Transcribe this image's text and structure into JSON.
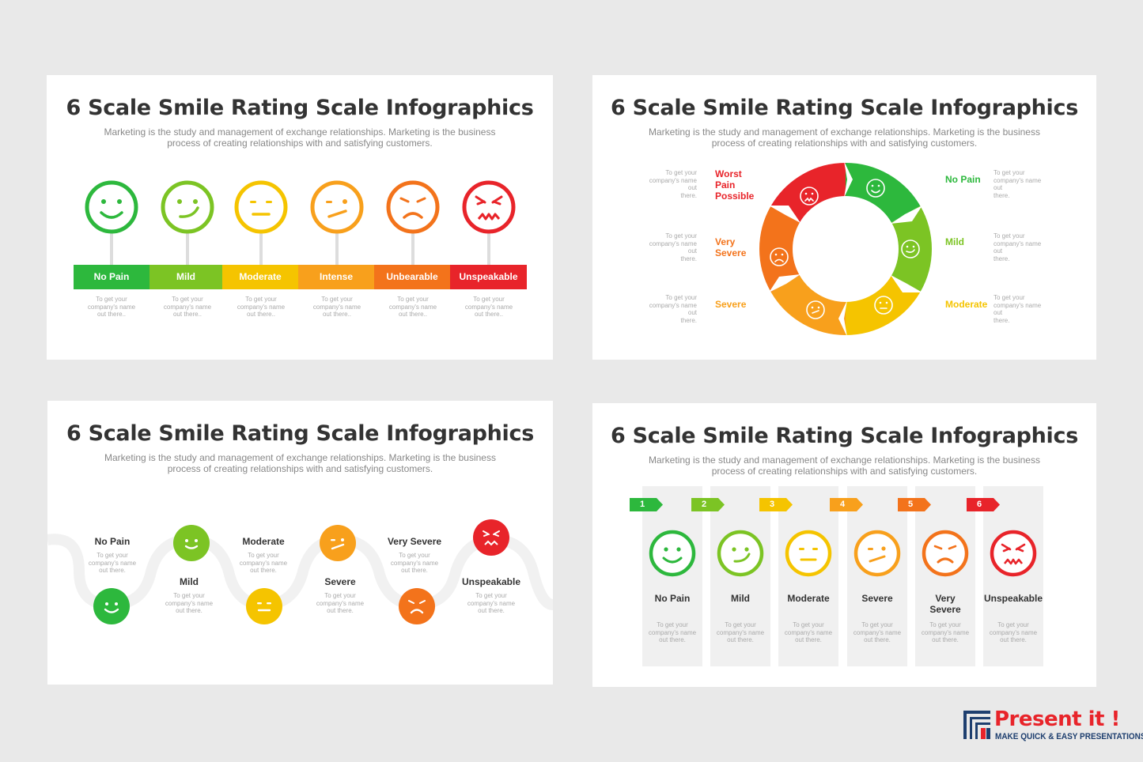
{
  "title": "6 Scale Smile Rating Scale Infographics",
  "subtitle_line1": "Marketing is the study and management of exchange relationships. Marketing is the business",
  "subtitle_line2": "process of creating relationships with and satisfying customers.",
  "colors": {
    "no_pain": "#2db83d",
    "mild": "#7cc424",
    "moderate": "#f5c400",
    "intense": "#f8a01c",
    "unbearable": "#f3731b",
    "unspeakable": "#e8242a",
    "bg": "#e9e9e9",
    "title": "#333333",
    "brand_red": "#e8242a",
    "brand_blue": "#1e3f6f"
  },
  "slide1": {
    "levels": [
      {
        "label": "No Pain",
        "note_line1": "To get your",
        "note_line2": "company's name",
        "note_line3": "out there..",
        "icon": "happy-face-icon"
      },
      {
        "label": "Mild",
        "note_line1": "To get your",
        "note_line2": "company's name",
        "note_line3": "out there..",
        "icon": "smirk-face-icon"
      },
      {
        "label": "Moderate",
        "note_line1": "To get your",
        "note_line2": "company's name",
        "note_line3": "out there..",
        "icon": "neutral-face-icon"
      },
      {
        "label": "Intense",
        "note_line1": "To get your",
        "note_line2": "company's name",
        "note_line3": "out there..",
        "icon": "uneasy-face-icon"
      },
      {
        "label": "Unbearable",
        "note_line1": "To get your",
        "note_line2": "company's name",
        "note_line3": "out there..",
        "icon": "sad-face-icon"
      },
      {
        "label": "Unspeakable",
        "note_line1": "To get your",
        "note_line2": "company's name",
        "note_line3": "out there..",
        "icon": "angry-face-icon"
      }
    ]
  },
  "slide2": {
    "left": [
      {
        "label_line1": "Worst",
        "label_line2": "Pain",
        "label_line3": "Possible",
        "note_line1": "To get your",
        "note_line2": "company's name out",
        "note_line3": "there."
      },
      {
        "label_line1": "Very",
        "label_line2": "Severe",
        "label_line3": "",
        "note_line1": "To get your",
        "note_line2": "company's name out",
        "note_line3": "there."
      },
      {
        "label_line1": "Severe",
        "label_line2": "",
        "label_line3": "",
        "note_line1": "To get your",
        "note_line2": "company's name out",
        "note_line3": "there."
      }
    ],
    "right": [
      {
        "label": "No Pain",
        "note_line1": "To get your",
        "note_line2": "company's name out",
        "note_line3": "there."
      },
      {
        "label": "Mild",
        "note_line1": "To get your",
        "note_line2": "company's name out",
        "note_line3": "there."
      },
      {
        "label": "Moderate",
        "note_line1": "To get your",
        "note_line2": "company's name out",
        "note_line3": "there."
      }
    ]
  },
  "slide3": {
    "items": [
      {
        "label": "No Pain",
        "note_line1": "To get your",
        "note_line2": "company's name",
        "note_line3": "out there."
      },
      {
        "label": "Mild",
        "note_line1": "To get your",
        "note_line2": "company's name",
        "note_line3": "out there."
      },
      {
        "label": "Moderate",
        "note_line1": "To get your",
        "note_line2": "company's name",
        "note_line3": "out there."
      },
      {
        "label": "Severe",
        "note_line1": "To get your",
        "note_line2": "company's name",
        "note_line3": "out there."
      },
      {
        "label": "Very Severe",
        "note_line1": "To get your",
        "note_line2": "company's name",
        "note_line3": "out there."
      },
      {
        "label": "Unspeakable",
        "note_line1": "To get your",
        "note_line2": "company's name",
        "note_line3": "out there."
      }
    ]
  },
  "slide4": {
    "columns": [
      {
        "num": "1",
        "label_line1": "No Pain",
        "label_line2": "",
        "note_line1": "To get your",
        "note_line2": "company's name",
        "note_line3": "out there."
      },
      {
        "num": "2",
        "label_line1": "Mild",
        "label_line2": "",
        "note_line1": "To get your",
        "note_line2": "company's name",
        "note_line3": "out there."
      },
      {
        "num": "3",
        "label_line1": "Moderate",
        "label_line2": "",
        "note_line1": "To get your",
        "note_line2": "company's name",
        "note_line3": "out there."
      },
      {
        "num": "4",
        "label_line1": "Severe",
        "label_line2": "",
        "note_line1": "To get your",
        "note_line2": "company's name",
        "note_line3": "out there."
      },
      {
        "num": "5",
        "label_line1": "Very",
        "label_line2": "Severe",
        "note_line1": "To get your",
        "note_line2": "company's name",
        "note_line3": "out there."
      },
      {
        "num": "6",
        "label_line1": "Unspeakable",
        "label_line2": "",
        "note_line1": "To get your",
        "note_line2": "company's name",
        "note_line3": "out there."
      }
    ]
  },
  "brand": {
    "name": "Present it !",
    "tagline": "MAKE QUICK & EASY PRESENTATIONS"
  }
}
